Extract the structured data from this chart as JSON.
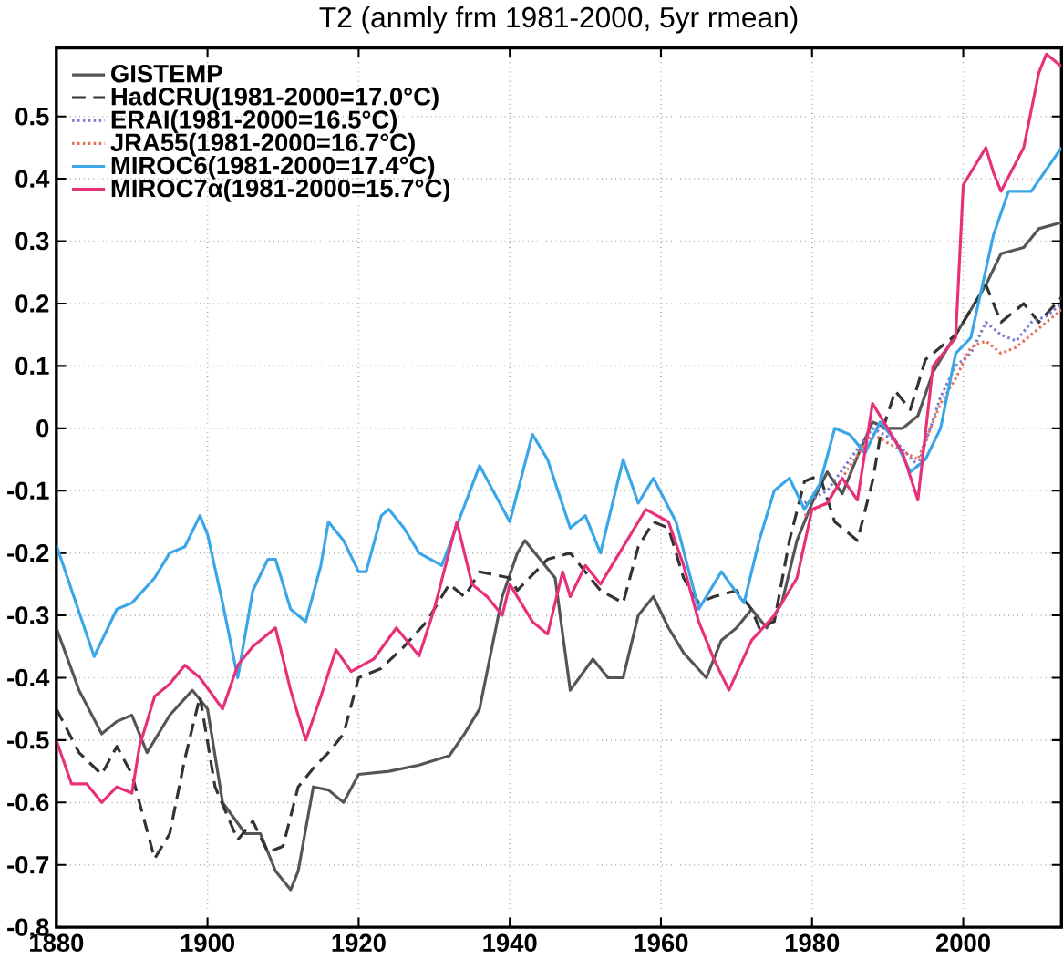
{
  "chart_data": {
    "type": "line",
    "title": "T2 (anmly frm 1981-2000, 5yr rmean)",
    "xlim": [
      1880,
      2013
    ],
    "ylim": [
      -0.8,
      0.61
    ],
    "xticks": [
      1880,
      1900,
      1920,
      1940,
      1960,
      1980,
      2000
    ],
    "yticks": [
      -0.8,
      -0.7,
      -0.6,
      -0.5,
      -0.4,
      -0.3,
      -0.2,
      -0.1,
      0,
      0.1,
      0.2,
      0.3,
      0.4,
      0.5
    ],
    "grid": true,
    "legend": "top left",
    "marker": "none",
    "series": [
      {
        "name": "GISTEMP",
        "color": "#555555",
        "line_style": "solid",
        "x": [
          1880,
          1883,
          1886,
          1888,
          1890,
          1892,
          1895,
          1898,
          1900,
          1902,
          1905,
          1907,
          1909,
          1911,
          1912,
          1914,
          1916,
          1918,
          1920,
          1924,
          1928,
          1932,
          1934,
          1935,
          1936,
          1939,
          1941,
          1942,
          1944,
          1946,
          1948,
          1951,
          1953,
          1955,
          1957,
          1959,
          1961,
          1963,
          1966,
          1968,
          1970,
          1972,
          1974,
          1976,
          1978,
          1980,
          1982,
          1984,
          1986,
          1988,
          1990,
          1992,
          1994,
          1996,
          1999,
          2003,
          2005,
          2008,
          2010,
          2013
        ],
        "values": [
          -0.32,
          -0.42,
          -0.49,
          -0.47,
          -0.46,
          -0.52,
          -0.46,
          -0.42,
          -0.45,
          -0.6,
          -0.65,
          -0.65,
          -0.71,
          -0.74,
          -0.71,
          -0.575,
          -0.58,
          -0.6,
          -0.555,
          -0.55,
          -0.54,
          -0.525,
          -0.49,
          -0.47,
          -0.45,
          -0.27,
          -0.2,
          -0.18,
          -0.21,
          -0.24,
          -0.42,
          -0.37,
          -0.4,
          -0.4,
          -0.3,
          -0.27,
          -0.32,
          -0.36,
          -0.4,
          -0.34,
          -0.32,
          -0.29,
          -0.32,
          -0.28,
          -0.18,
          -0.12,
          -0.07,
          -0.105,
          -0.045,
          0.01,
          0.0,
          0.0,
          0.02,
          0.09,
          0.15,
          0.23,
          0.28,
          0.29,
          0.32,
          0.33
        ]
      },
      {
        "name": "HadCRU(1981-2000=17.0°C)",
        "color": "#333333",
        "line_style": "dashed",
        "x": [
          1880,
          1883,
          1886,
          1888,
          1890,
          1893,
          1895,
          1897,
          1899,
          1901,
          1904,
          1906,
          1908,
          1910,
          1912,
          1914,
          1916,
          1918,
          1920,
          1923,
          1926,
          1929,
          1932,
          1934,
          1936,
          1940,
          1941,
          1945,
          1948,
          1952,
          1955,
          1957,
          1959,
          1961,
          1963,
          1965,
          1967,
          1970,
          1972,
          1973,
          1975,
          1977,
          1979,
          1981,
          1983,
          1986,
          1988,
          1989,
          1991,
          1993,
          1995,
          1997,
          1999,
          2003,
          2005,
          2008,
          2010,
          2013
        ],
        "values": [
          -0.45,
          -0.52,
          -0.555,
          -0.51,
          -0.555,
          -0.69,
          -0.65,
          -0.53,
          -0.43,
          -0.575,
          -0.66,
          -0.63,
          -0.68,
          -0.67,
          -0.575,
          -0.545,
          -0.52,
          -0.49,
          -0.4,
          -0.385,
          -0.35,
          -0.31,
          -0.25,
          -0.27,
          -0.23,
          -0.24,
          -0.26,
          -0.21,
          -0.2,
          -0.26,
          -0.28,
          -0.19,
          -0.15,
          -0.16,
          -0.24,
          -0.28,
          -0.27,
          -0.26,
          -0.29,
          -0.32,
          -0.31,
          -0.18,
          -0.085,
          -0.075,
          -0.15,
          -0.18,
          -0.085,
          -0.015,
          0.06,
          0.03,
          0.11,
          0.13,
          0.15,
          0.23,
          0.17,
          0.2,
          0.17,
          0.21
        ]
      },
      {
        "name": "ERAI(1981-2000=16.5°C)",
        "color": "#7a7ad0",
        "line_style": "dotted",
        "x": [
          1979,
          1982,
          1985,
          1988,
          1991,
          1994,
          1997,
          1999,
          2001,
          2003,
          2005,
          2007,
          2009,
          2011,
          2013
        ],
        "values": [
          -0.12,
          -0.1,
          -0.05,
          0.0,
          -0.02,
          -0.06,
          0.05,
          0.1,
          0.12,
          0.17,
          0.15,
          0.14,
          0.17,
          0.18,
          0.2
        ]
      },
      {
        "name": "JRA55(1981-2000=16.7°C)",
        "color": "#e8705a",
        "line_style": "dotted",
        "x": [
          1979,
          1982,
          1985,
          1988,
          1991,
          1994,
          1997,
          1999,
          2001,
          2003,
          2005,
          2007,
          2009,
          2011,
          2013
        ],
        "values": [
          -0.14,
          -0.12,
          -0.06,
          -0.01,
          -0.03,
          -0.05,
          0.04,
          0.08,
          0.13,
          0.14,
          0.12,
          0.13,
          0.15,
          0.17,
          0.19
        ]
      },
      {
        "name": "MIROC6(1981-2000=17.4°C)",
        "color": "#3aa6e8",
        "line_style": "solid",
        "x": [
          1880,
          1885,
          1888,
          1890,
          1893,
          1895,
          1897,
          1899,
          1900,
          1902,
          1904,
          1906,
          1908,
          1909,
          1911,
          1913,
          1915,
          1916,
          1918,
          1920,
          1921,
          1923,
          1924,
          1926,
          1928,
          1931,
          1936,
          1940,
          1943,
          1945,
          1948,
          1950,
          1952,
          1955,
          1957,
          1959,
          1962,
          1965,
          1968,
          1971,
          1973,
          1975,
          1977,
          1979,
          1981,
          1983,
          1985,
          1987,
          1989,
          1991,
          1993,
          1995,
          1997,
          1999,
          2001,
          2004,
          2006,
          2009,
          2013
        ],
        "values": [
          -0.187,
          -0.366,
          -0.29,
          -0.28,
          -0.24,
          -0.2,
          -0.19,
          -0.14,
          -0.17,
          -0.28,
          -0.4,
          -0.26,
          -0.21,
          -0.21,
          -0.29,
          -0.31,
          -0.22,
          -0.15,
          -0.18,
          -0.23,
          -0.23,
          -0.14,
          -0.13,
          -0.16,
          -0.2,
          -0.22,
          -0.06,
          -0.15,
          -0.01,
          -0.05,
          -0.16,
          -0.14,
          -0.2,
          -0.05,
          -0.12,
          -0.08,
          -0.15,
          -0.29,
          -0.23,
          -0.28,
          -0.18,
          -0.1,
          -0.08,
          -0.13,
          -0.09,
          0.0,
          -0.01,
          -0.04,
          0.01,
          -0.02,
          -0.07,
          -0.05,
          0.0,
          0.12,
          0.145,
          0.31,
          0.38,
          0.38,
          0.45
        ]
      },
      {
        "name": "MIROC7α(1981-2000=15.7°C)",
        "color": "#e8307a",
        "line_style": "solid",
        "x": [
          1880,
          1882,
          1884,
          1886,
          1888,
          1890,
          1891,
          1893,
          1895,
          1897,
          1899,
          1902,
          1904,
          1906,
          1909,
          1911,
          1913,
          1915,
          1917,
          1919,
          1922,
          1925,
          1928,
          1930,
          1933,
          1935,
          1937,
          1939,
          1940,
          1943,
          1945,
          1947,
          1948,
          1950,
          1952,
          1955,
          1958,
          1961,
          1963,
          1965,
          1967,
          1969,
          1972,
          1975,
          1978,
          1980,
          1982,
          1984,
          1986,
          1988,
          1990,
          1992,
          1994,
          1996,
          1999,
          2000,
          2003,
          2004,
          2005,
          2008,
          2010,
          2011,
          2013
        ],
        "values": [
          -0.5,
          -0.57,
          -0.57,
          -0.6,
          -0.575,
          -0.585,
          -0.51,
          -0.43,
          -0.41,
          -0.38,
          -0.4,
          -0.45,
          -0.38,
          -0.35,
          -0.32,
          -0.42,
          -0.5,
          -0.43,
          -0.355,
          -0.39,
          -0.37,
          -0.32,
          -0.365,
          -0.29,
          -0.15,
          -0.25,
          -0.27,
          -0.3,
          -0.25,
          -0.31,
          -0.33,
          -0.23,
          -0.27,
          -0.22,
          -0.25,
          -0.19,
          -0.13,
          -0.15,
          -0.22,
          -0.31,
          -0.37,
          -0.42,
          -0.34,
          -0.3,
          -0.24,
          -0.13,
          -0.12,
          -0.08,
          -0.115,
          0.04,
          0.0,
          -0.04,
          -0.115,
          0.1,
          0.145,
          0.39,
          0.45,
          0.41,
          0.38,
          0.45,
          0.57,
          0.6,
          0.58
        ]
      }
    ]
  }
}
